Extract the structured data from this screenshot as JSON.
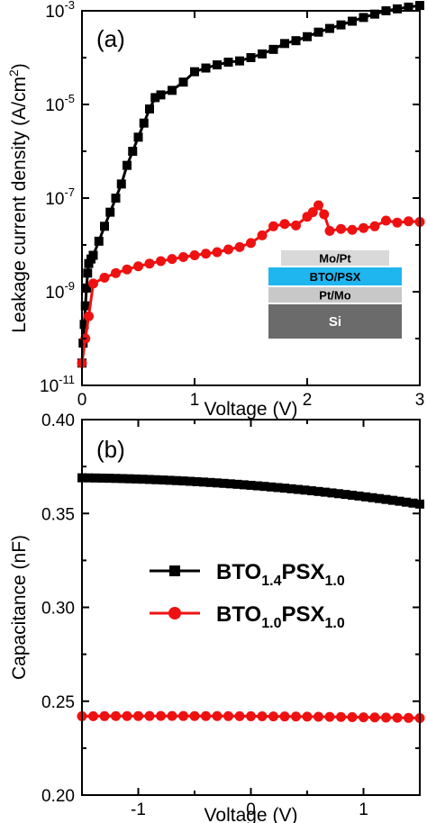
{
  "colors": {
    "series_black": "#000000",
    "series_red": "#ee1111",
    "inset_mopt": "#d9d9d9",
    "inset_bto": "#1fb6f0",
    "inset_ptmo": "#c8c8c8",
    "inset_si": "#6b6b6b"
  },
  "chart_data": [
    {
      "type": "line",
      "panel_label": "(a)",
      "xlabel": "Voltage (V)",
      "ylabel": "Leakage current density (A/cm",
      "ylabel_sup": "2",
      "ylabel_end": ")",
      "y_scale": "log",
      "xlim": [
        0,
        3
      ],
      "ylim": [
        1e-11,
        0.001
      ],
      "x_ticks": [
        0,
        1,
        2,
        3
      ],
      "y_ticks": [
        {
          "value": 1e-11,
          "base": "10",
          "exp": "-11"
        },
        {
          "value": 1e-09,
          "base": "10",
          "exp": "-9"
        },
        {
          "value": 1e-07,
          "base": "10",
          "exp": "-7"
        },
        {
          "value": 1e-05,
          "base": "10",
          "exp": "-5"
        },
        {
          "value": 0.001,
          "base": "10",
          "exp": "-3"
        }
      ],
      "series": [
        {
          "marker": "square",
          "color": "#000000",
          "x": [
            0.0,
            0.01,
            0.02,
            0.03,
            0.04,
            0.05,
            0.06,
            0.08,
            0.1,
            0.15,
            0.2,
            0.25,
            0.3,
            0.35,
            0.4,
            0.45,
            0.5,
            0.55,
            0.6,
            0.65,
            0.7,
            0.8,
            0.9,
            1.0,
            1.1,
            1.2,
            1.3,
            1.4,
            1.5,
            1.6,
            1.7,
            1.8,
            1.9,
            2.0,
            2.1,
            2.2,
            2.3,
            2.4,
            2.5,
            2.6,
            2.7,
            2.8,
            2.9,
            3.0
          ],
          "y": [
            3e-11,
            8e-11,
            2e-10,
            5e-10,
            1.2e-09,
            2.5e-09,
            4e-09,
            5e-09,
            6e-09,
            1.2e-08,
            2.5e-08,
            5e-08,
            1e-07,
            2e-07,
            5e-07,
            1e-06,
            2e-06,
            4e-06,
            8e-06,
            1.4e-05,
            1.6e-05,
            2e-05,
            3e-05,
            5e-05,
            6e-05,
            7e-05,
            8e-05,
            8.5e-05,
            0.0001,
            0.00012,
            0.00015,
            0.0002,
            0.00023,
            0.00028,
            0.00035,
            0.00042,
            0.0005,
            0.0006,
            0.00072,
            0.00085,
            0.001,
            0.0011,
            0.0012,
            0.0013
          ]
        },
        {
          "marker": "circle",
          "color": "#ee1111",
          "x": [
            0.0,
            0.03,
            0.06,
            0.1,
            0.2,
            0.3,
            0.4,
            0.5,
            0.6,
            0.7,
            0.8,
            0.9,
            1.0,
            1.1,
            1.2,
            1.3,
            1.4,
            1.5,
            1.6,
            1.7,
            1.8,
            1.9,
            2.0,
            2.05,
            2.1,
            2.15,
            2.2,
            2.3,
            2.4,
            2.5,
            2.6,
            2.7,
            2.8,
            2.9,
            3.0
          ],
          "y": [
            3e-11,
            1e-10,
            3e-10,
            1.5e-09,
            2e-09,
            2.5e-09,
            3e-09,
            3.5e-09,
            4e-09,
            4.5e-09,
            5e-09,
            5.5e-09,
            6e-09,
            6.5e-09,
            7e-09,
            8e-09,
            9e-09,
            1.1e-08,
            1.6e-08,
            2.5e-08,
            2.8e-08,
            2.6e-08,
            4e-08,
            5e-08,
            7e-08,
            4.5e-08,
            2e-08,
            2.2e-08,
            2.1e-08,
            2.3e-08,
            2.5e-08,
            3.3e-08,
            3e-08,
            3.2e-08,
            3.1e-08
          ]
        }
      ],
      "inset_layers": [
        "Mo/Pt",
        "BTO/PSX",
        "Pt/Mo",
        "Si"
      ]
    },
    {
      "type": "line",
      "panel_label": "(b)",
      "xlabel": "Voltage (V)",
      "ylabel": "Capacitance (nF)",
      "xlim": [
        -1.5,
        1.5
      ],
      "ylim": [
        0.2,
        0.4
      ],
      "x_ticks": [
        -1,
        0,
        1
      ],
      "x_tick_labels": [
        "-1",
        "0",
        "1"
      ],
      "y_ticks": [
        0.2,
        0.25,
        0.3,
        0.35,
        0.4
      ],
      "y_tick_labels": [
        "0.20",
        "0.25",
        "0.30",
        "0.35",
        "0.40"
      ],
      "legend_placement": "center-right",
      "series": [
        {
          "marker": "square",
          "color": "#000000",
          "name_main": "BTO",
          "name_sub1": "1.4",
          "name_mid": "PSX",
          "name_sub2": "1.0",
          "x_start": -1.5,
          "x_end": 1.5,
          "x_step": 0.06,
          "y_start": 0.369,
          "y_mid": 0.365,
          "y_end": 0.355
        },
        {
          "marker": "circle",
          "color": "#ee1111",
          "name_main": "BTO",
          "name_sub1": "1.0",
          "name_mid": "PSX",
          "name_sub2": "1.0",
          "x_start": -1.5,
          "x_end": 1.5,
          "x_step": 0.1,
          "y_start": 0.242,
          "y_mid": 0.242,
          "y_end": 0.241
        }
      ]
    }
  ]
}
